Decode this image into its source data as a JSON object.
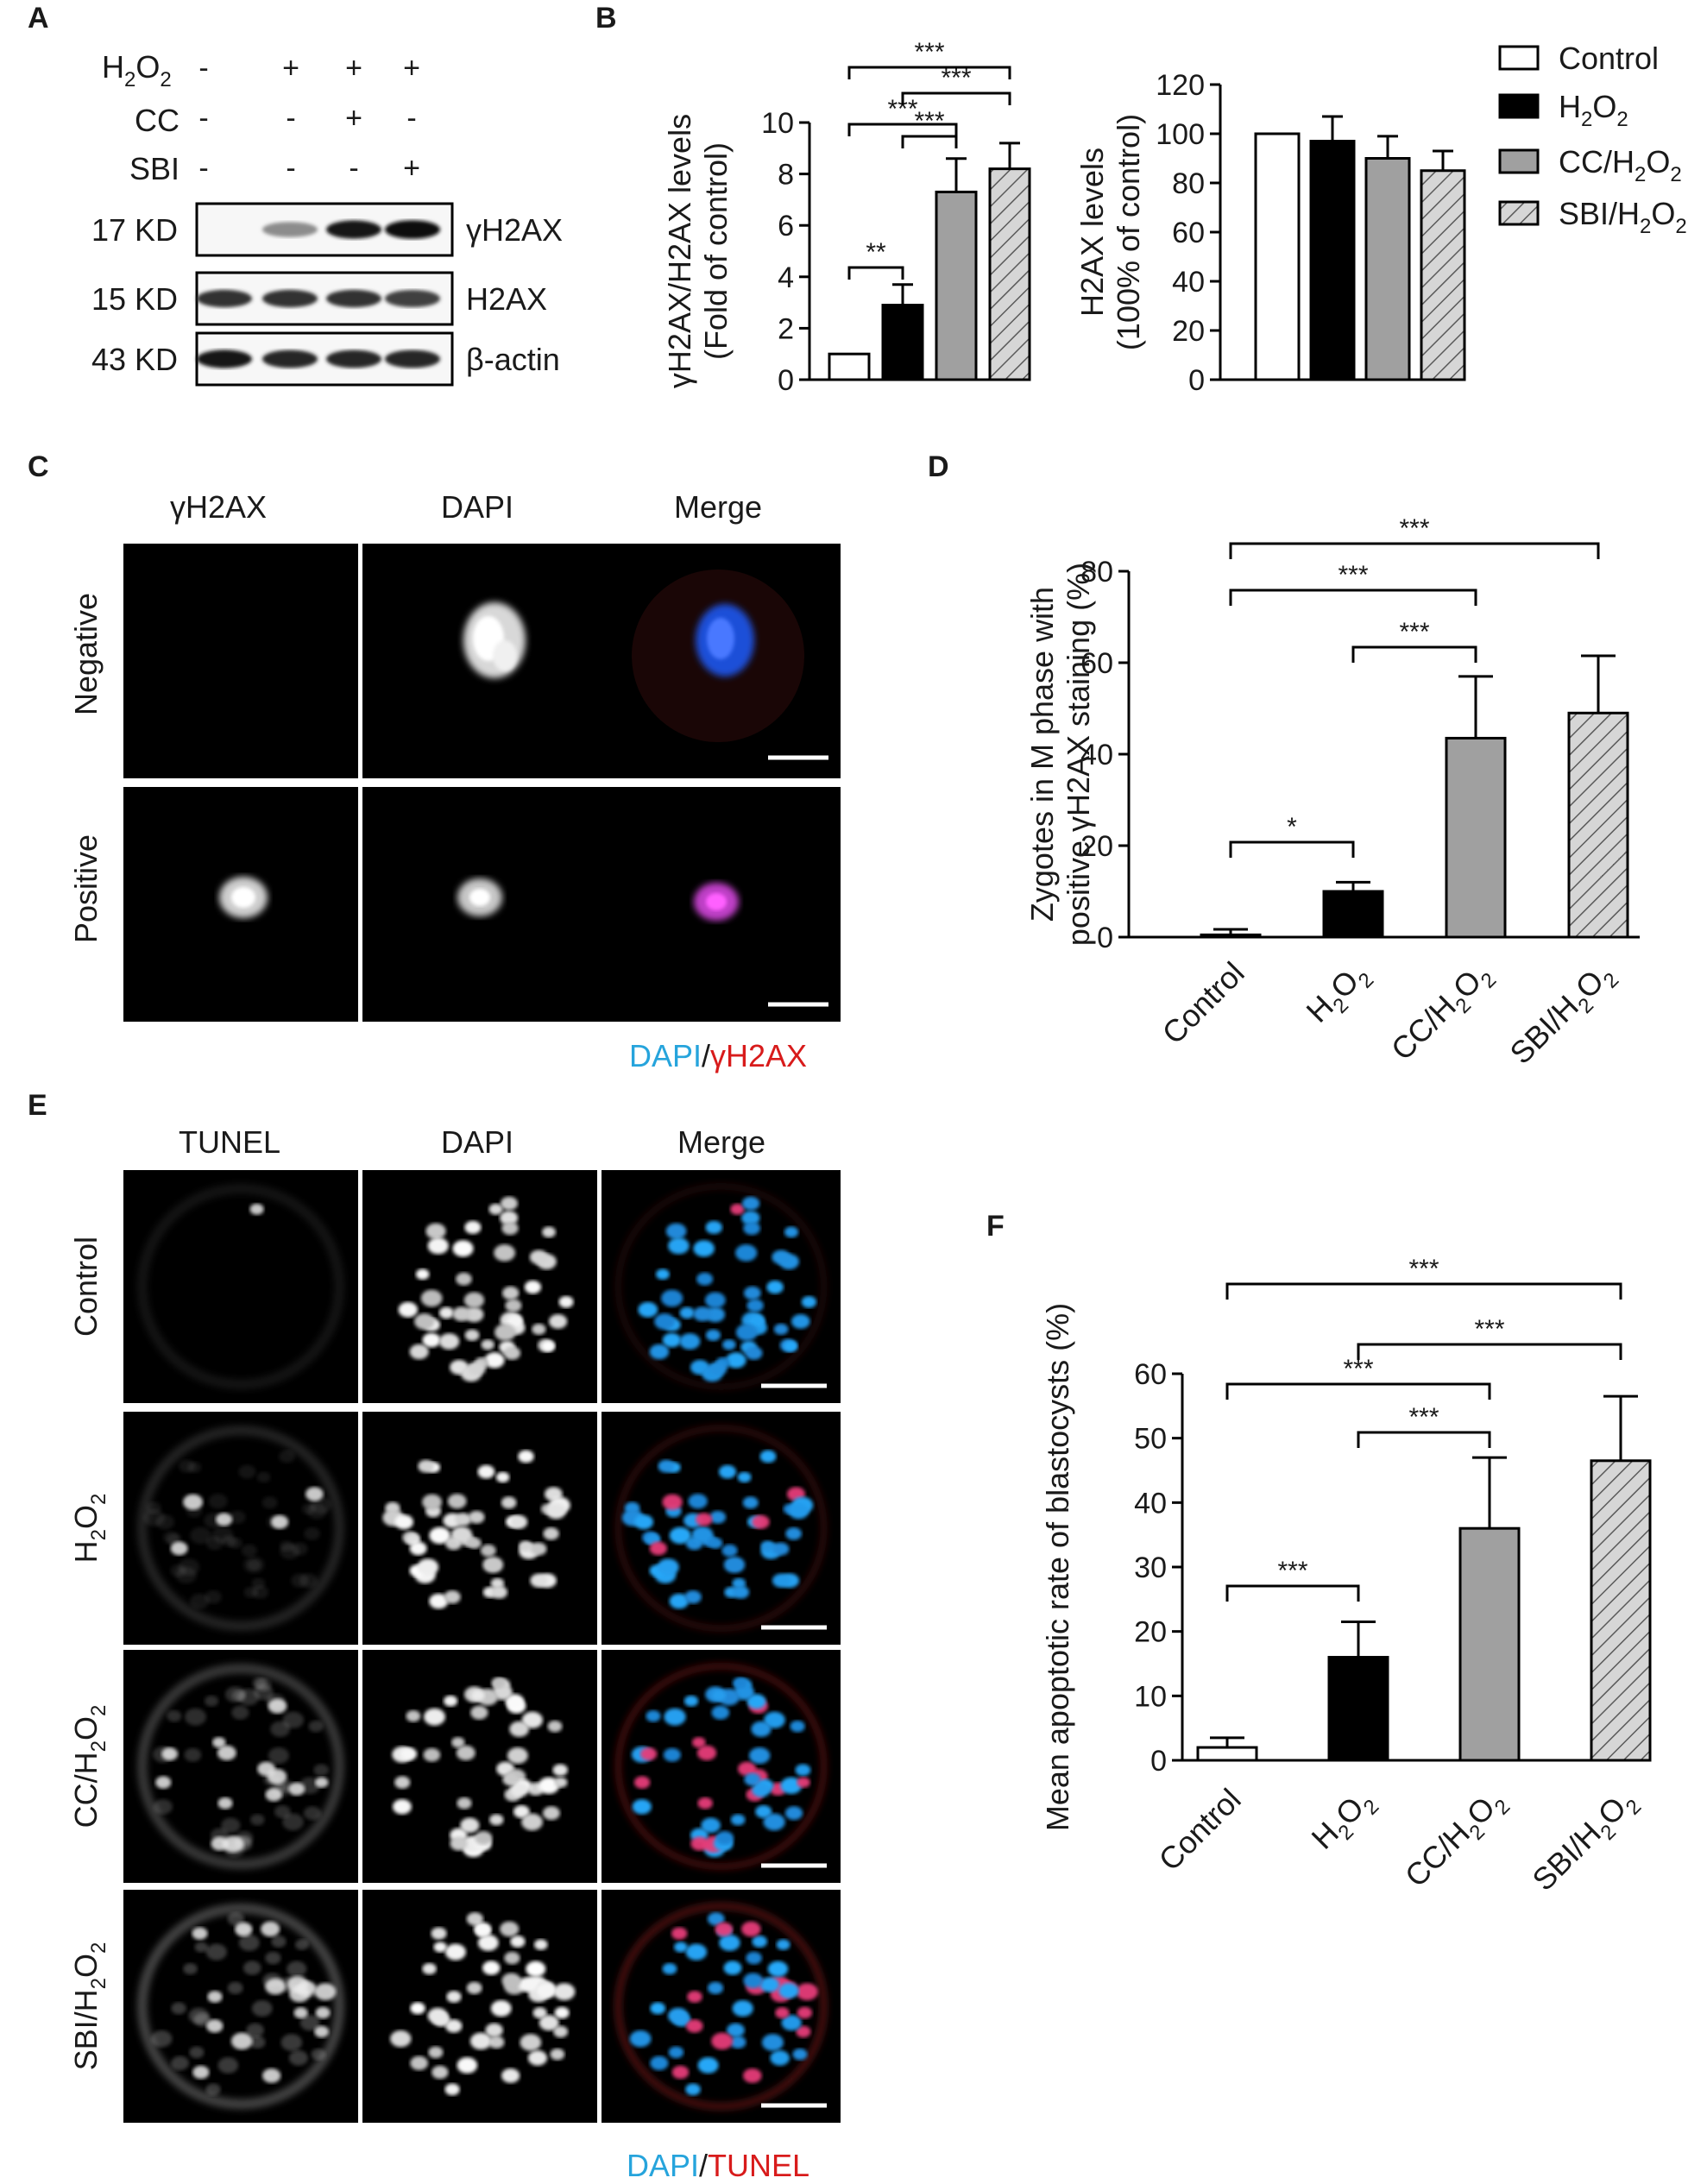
{
  "panels": {
    "A": {
      "letter": "A",
      "conditions": [
        {
          "label": "H2O2",
          "base": "H",
          "sub1": "2",
          "mid": "O",
          "sub2": "2",
          "values": [
            "-",
            "+",
            "+",
            "+"
          ]
        },
        {
          "label": "CC",
          "values": [
            "-",
            "-",
            "+",
            "-"
          ]
        },
        {
          "label": "SBI",
          "values": [
            "-",
            "-",
            "-",
            "+"
          ]
        }
      ],
      "blots": [
        {
          "size": "17 KD",
          "name": "γH2AX",
          "intensity": [
            0.0,
            0.45,
            0.9,
            0.95
          ]
        },
        {
          "size": "15 KD",
          "name": "H2AX",
          "intensity": [
            0.8,
            0.8,
            0.8,
            0.75
          ]
        },
        {
          "size": "43 KD",
          "name": "β-actin",
          "intensity": [
            0.9,
            0.85,
            0.85,
            0.85
          ]
        }
      ]
    },
    "B": {
      "letter": "B",
      "legend": [
        {
          "text": "Control",
          "fill": "#ffffff",
          "hatch": false
        },
        {
          "text": "H",
          "sub": "2",
          "text2": "O",
          "sub2": "2",
          "fill": "#000000",
          "hatch": false
        },
        {
          "text": "CC/H",
          "sub": "2",
          "text2": "O",
          "sub2": "2",
          "fill": "#a0a0a0",
          "hatch": false
        },
        {
          "text": "SBI/H",
          "sub": "2",
          "text2": "O",
          "sub2": "2",
          "fill": "#d6d6d6",
          "hatch": true
        }
      ]
    },
    "C": {
      "letter": "C",
      "columns": [
        "γH2AX",
        "DAPI",
        "Merge"
      ],
      "rows": [
        "Negative",
        "Positive"
      ],
      "caption_a": "DAPI",
      "caption_sep": "/",
      "caption_b": "γH2AX"
    },
    "D": {
      "letter": "D"
    },
    "E": {
      "letter": "E",
      "columns": [
        "TUNEL",
        "DAPI",
        "Merge"
      ],
      "rows": [
        "Control",
        "H2O2",
        "CC/H2O2",
        "SBI/H2O2"
      ],
      "caption_a": "DAPI",
      "caption_sep": "/",
      "caption_b": "TUNEL"
    },
    "F": {
      "letter": "F"
    }
  },
  "chart_data": [
    {
      "id": "B1",
      "type": "bar",
      "categories": [
        "Control",
        "H2O2",
        "CC/H2O2",
        "SBI/H2O2"
      ],
      "values": [
        1.0,
        2.9,
        7.3,
        8.2
      ],
      "errors": [
        0.0,
        0.8,
        1.3,
        1.0
      ],
      "ylabel_line1": "γH2AX/H2AX levels",
      "ylabel_line2": "(Fold of control)",
      "ylim": [
        0,
        10
      ],
      "yticks": [
        0,
        2,
        4,
        6,
        8,
        10
      ],
      "significance": [
        {
          "from": 0,
          "to": 1,
          "label": "**"
        },
        {
          "from": 1,
          "to": 2,
          "label": "***"
        },
        {
          "from": 0,
          "to": 2,
          "label": "***"
        },
        {
          "from": 1,
          "to": 3,
          "label": "***"
        },
        {
          "from": 0,
          "to": 3,
          "label": "***"
        }
      ]
    },
    {
      "id": "B2",
      "type": "bar",
      "categories": [
        "Control",
        "H2O2",
        "CC/H2O2",
        "SBI/H2O2"
      ],
      "values": [
        100,
        97,
        90,
        85
      ],
      "errors": [
        0,
        10,
        9,
        8
      ],
      "ylabel_line1": "H2AX levels",
      "ylabel_line2": "(100% of control)",
      "ylim": [
        0,
        120
      ],
      "yticks": [
        0,
        20,
        40,
        60,
        80,
        100,
        120
      ],
      "significance": []
    },
    {
      "id": "D",
      "type": "bar",
      "categories": [
        "Control",
        "H2O2",
        "CC/H2O2",
        "SBI/H2O2"
      ],
      "values": [
        0.5,
        10,
        43.5,
        49
      ],
      "errors": [
        1.2,
        2,
        13.5,
        12.5
      ],
      "ylabel_line1": "Zygotes in M phase with",
      "ylabel_line2": "positive γH2AX staining (%)",
      "ylim": [
        0,
        80
      ],
      "yticks": [
        0,
        20,
        40,
        60,
        80
      ],
      "significance": [
        {
          "from": 0,
          "to": 1,
          "label": "*"
        },
        {
          "from": 1,
          "to": 2,
          "label": "***"
        },
        {
          "from": 0,
          "to": 2,
          "label": "***"
        },
        {
          "from": 0,
          "to": 3,
          "label": "***"
        }
      ]
    },
    {
      "id": "F",
      "type": "bar",
      "categories": [
        "Control",
        "H2O2",
        "CC/H2O2",
        "SBI/H2O2"
      ],
      "values": [
        2,
        16,
        36,
        46.5
      ],
      "errors": [
        1.5,
        5.5,
        11,
        10
      ],
      "ylabel_line1": "Mean apoptotic rate of blastocysts (%)",
      "ylabel_line2": "",
      "ylim": [
        0,
        60
      ],
      "yticks": [
        0,
        10,
        20,
        30,
        40,
        50,
        60
      ],
      "significance": [
        {
          "from": 0,
          "to": 1,
          "label": "***"
        },
        {
          "from": 1,
          "to": 2,
          "label": "***"
        },
        {
          "from": 0,
          "to": 2,
          "label": "***"
        },
        {
          "from": 1,
          "to": 3,
          "label": "***"
        },
        {
          "from": 0,
          "to": 3,
          "label": "***"
        }
      ]
    }
  ]
}
